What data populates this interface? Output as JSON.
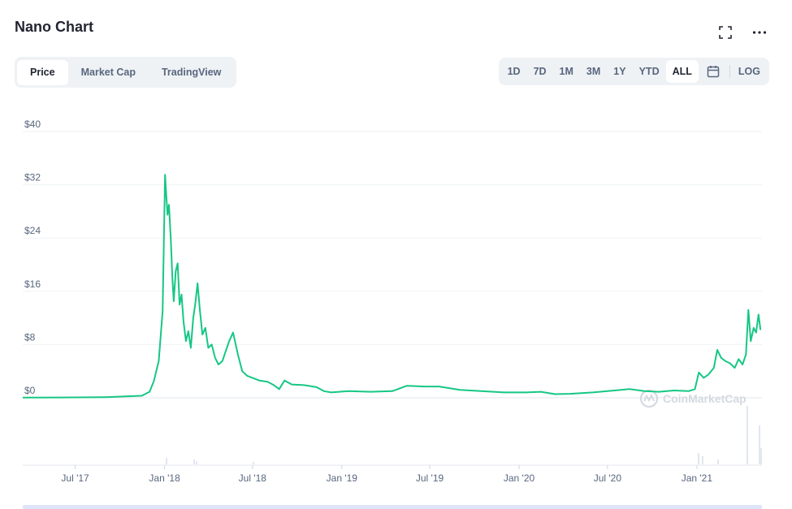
{
  "header": {
    "title": "Nano Chart",
    "fullscreen_icon": "expand-icon",
    "more_icon": "more-horizontal-icon"
  },
  "tabs": [
    {
      "label": "Price",
      "active": true
    },
    {
      "label": "Market Cap",
      "active": false
    },
    {
      "label": "TradingView",
      "active": false
    }
  ],
  "ranges": [
    {
      "label": "1D",
      "active": false
    },
    {
      "label": "7D",
      "active": false
    },
    {
      "label": "1M",
      "active": false
    },
    {
      "label": "3M",
      "active": false
    },
    {
      "label": "1Y",
      "active": false
    },
    {
      "label": "YTD",
      "active": false
    },
    {
      "label": "ALL",
      "active": true
    }
  ],
  "calendar_icon": "calendar-icon",
  "log_label": "LOG",
  "watermark": "CoinMarketCap",
  "colors": {
    "line": "#16c784",
    "grid": "#eff2f5",
    "axis_text": "#58667e",
    "volume": "#cfd6e4"
  },
  "chart_data": {
    "type": "line",
    "title": "",
    "xlabel": "",
    "ylabel": "",
    "ylim": [
      0,
      40
    ],
    "xlim": [
      "2017-03-15",
      "2021-05-15"
    ],
    "y_ticks": [
      0,
      8,
      16,
      24,
      32,
      40
    ],
    "y_tick_labels": [
      "$0",
      "$8",
      "$16",
      "$24",
      "$32",
      "$40"
    ],
    "x_ticks": [
      "2017-07-01",
      "2018-01-01",
      "2018-07-01",
      "2019-01-01",
      "2019-07-01",
      "2020-01-01",
      "2020-07-01",
      "2021-01-01"
    ],
    "x_tick_labels": [
      "Jul '17",
      "Jan '18",
      "Jul '18",
      "Jan '19",
      "Jul '19",
      "Jan '20",
      "Jul '20",
      "Jan '21"
    ],
    "grid": true,
    "series": [
      {
        "x": [
          "2017-03-15",
          "2017-06-01",
          "2017-09-01",
          "2017-11-15",
          "2017-12-01",
          "2017-12-10",
          "2017-12-20",
          "2017-12-28",
          "2018-01-02",
          "2018-01-04",
          "2018-01-07",
          "2018-01-10",
          "2018-01-14",
          "2018-01-17",
          "2018-01-20",
          "2018-01-24",
          "2018-01-28",
          "2018-02-01",
          "2018-02-05",
          "2018-02-09",
          "2018-02-14",
          "2018-02-19",
          "2018-02-24",
          "2018-03-01",
          "2018-03-05",
          "2018-03-10",
          "2018-03-15",
          "2018-03-20",
          "2018-03-26",
          "2018-04-01",
          "2018-04-08",
          "2018-04-15",
          "2018-04-22",
          "2018-04-30",
          "2018-05-07",
          "2018-05-14",
          "2018-05-22",
          "2018-06-01",
          "2018-06-10",
          "2018-06-20",
          "2018-07-01",
          "2018-07-15",
          "2018-08-01",
          "2018-08-14",
          "2018-08-25",
          "2018-09-05",
          "2018-09-20",
          "2018-10-15",
          "2018-11-10",
          "2018-11-25",
          "2018-12-10",
          "2019-01-15",
          "2019-03-01",
          "2019-04-15",
          "2019-05-15",
          "2019-06-20",
          "2019-07-20",
          "2019-09-01",
          "2019-10-15",
          "2019-12-01",
          "2020-01-15",
          "2020-02-15",
          "2020-03-15",
          "2020-04-15",
          "2020-06-01",
          "2020-07-15",
          "2020-08-15",
          "2020-09-15",
          "2020-10-15",
          "2020-11-15",
          "2020-12-15",
          "2020-12-28",
          "2021-01-05",
          "2021-01-15",
          "2021-01-25",
          "2021-02-05",
          "2021-02-12",
          "2021-02-20",
          "2021-03-01",
          "2021-03-10",
          "2021-03-20",
          "2021-03-28",
          "2021-04-05",
          "2021-04-12",
          "2021-04-17",
          "2021-04-22",
          "2021-04-28",
          "2021-05-03",
          "2021-05-08",
          "2021-05-12"
        ],
        "y": [
          0.02,
          0.05,
          0.1,
          0.3,
          0.9,
          2.5,
          5.5,
          13,
          33.5,
          31,
          27.5,
          29,
          23.5,
          18,
          14.5,
          19,
          20.2,
          14,
          15.5,
          11.5,
          8.5,
          10,
          7.5,
          12,
          14,
          17.2,
          13,
          9.5,
          10.5,
          7.5,
          8,
          6,
          5,
          5.5,
          7,
          8.5,
          9.8,
          6.5,
          4,
          3.3,
          3,
          2.6,
          2.4,
          1.9,
          1.3,
          2.6,
          2.0,
          1.9,
          1.6,
          1.0,
          0.8,
          1.0,
          0.9,
          1.0,
          1.8,
          1.7,
          1.7,
          1.2,
          1.0,
          0.8,
          0.8,
          0.9,
          0.55,
          0.6,
          0.8,
          1.1,
          1.3,
          1.0,
          0.9,
          1.1,
          1.0,
          1.3,
          3.8,
          3.0,
          3.5,
          4.5,
          7.2,
          6.0,
          5.5,
          5.2,
          4.5,
          5.8,
          5.0,
          6.5,
          13.2,
          8.5,
          10.5,
          9.8,
          12.5,
          10.2
        ]
      }
    ]
  }
}
